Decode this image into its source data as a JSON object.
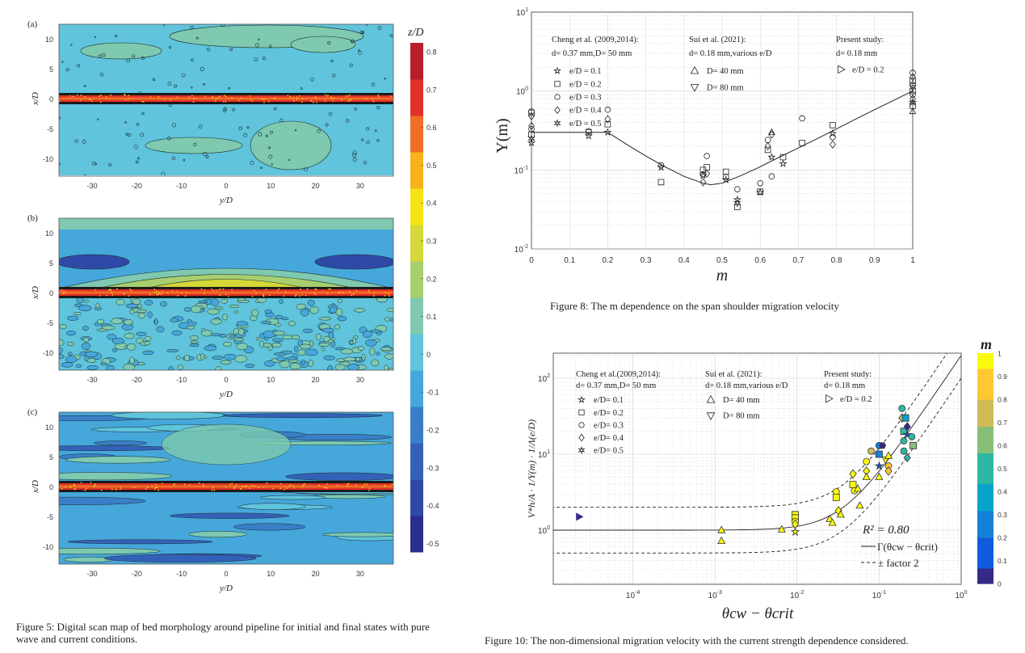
{
  "figure5": {
    "panels": [
      "(a)",
      "(b)",
      "(c)"
    ],
    "xlabel": "y/D",
    "ylabel": "x/D",
    "xticks": [
      "30",
      "20",
      "10",
      "0",
      "-10",
      "-20",
      "-30"
    ],
    "yticks": [
      "10",
      "5",
      "0",
      "-5",
      "-10"
    ],
    "colorbar_label": "z/D",
    "colorbar_ticks": [
      "0.8",
      "0.7",
      "0.6",
      "0.5",
      "0.4",
      "0.3",
      "0.2",
      "0.1",
      "0",
      "-0.1",
      "-0.2",
      "-0.3",
      "-0.4",
      "-0.5"
    ],
    "colormap": [
      "#2a2e8c",
      "#2f49a6",
      "#3461b8",
      "#3a7ec8",
      "#46a7db",
      "#5fc4dc",
      "#7ec9b0",
      "#a8cf6e",
      "#d4d838",
      "#f5e415",
      "#f7b21c",
      "#ee6f25",
      "#e4302a",
      "#b7202a"
    ],
    "caption_line1": "Figure 5: Digital scan map of bed morphology around pipeline for initial and final states with pure",
    "caption_line2": "wave and current conditions."
  },
  "chart_data": [
    {
      "type": "scatter",
      "id": "figure8",
      "xlabel": "m",
      "ylabel": "Υ(m)",
      "xlim": [
        0,
        1
      ],
      "ylim": [
        0.01,
        10
      ],
      "yscale": "log",
      "grid": true,
      "xticks": [
        "0",
        "0.1",
        "0.2",
        "0.3",
        "0.4",
        "0.5",
        "0.6",
        "0.7",
        "0.8",
        "0.9",
        "1"
      ],
      "yticks": [
        {
          "base": "10",
          "exp": "1"
        },
        {
          "base": "10",
          "exp": "0"
        },
        {
          "base": "10",
          "exp": "-1"
        },
        {
          "base": "10",
          "exp": "-2"
        }
      ],
      "legend": {
        "cheng_title": "Cheng et al. (2009,2014):",
        "cheng_sub": "d= 0.37 mm,D= 50 mm",
        "cheng_items": [
          {
            "marker": "star5",
            "label": "e/D = 0.1"
          },
          {
            "marker": "square",
            "label": "e/D = 0.2"
          },
          {
            "marker": "circle",
            "label": "e/D = 0.3"
          },
          {
            "marker": "diamond",
            "label": "e/D = 0.4"
          },
          {
            "marker": "star6",
            "label": "e/D = 0.5"
          }
        ],
        "sui_title": "Sui et al. (2021):",
        "sui_sub": "d= 0.18 mm,various e/D",
        "sui_items": [
          {
            "marker": "tri-up",
            "label": "D= 40 mm"
          },
          {
            "marker": "tri-down",
            "label": "D= 80 mm"
          }
        ],
        "present_title": "Present study:",
        "present_sub": "d= 0.18 mm",
        "present_items": [
          {
            "marker": "tri-right",
            "label": "e/D = 0.2"
          }
        ]
      },
      "fit_curve": {
        "x": [
          0,
          0.2,
          0.25,
          0.3,
          0.35,
          0.4,
          0.45,
          0.47,
          0.5,
          0.55,
          0.6,
          0.65,
          0.7,
          0.75,
          0.8,
          0.85,
          0.9,
          0.95,
          1
        ],
        "y": [
          0.3,
          0.3,
          0.21,
          0.15,
          0.11,
          0.083,
          0.068,
          0.065,
          0.068,
          0.085,
          0.11,
          0.145,
          0.19,
          0.25,
          0.33,
          0.44,
          0.58,
          0.76,
          1.0
        ]
      },
      "points": [
        [
          0,
          0.22,
          "star5"
        ],
        [
          0,
          0.25,
          "star6"
        ],
        [
          0,
          0.28,
          "square"
        ],
        [
          0,
          0.33,
          "circle"
        ],
        [
          0,
          0.36,
          "diamond"
        ],
        [
          0,
          0.48,
          "diamond"
        ],
        [
          0,
          0.53,
          "square"
        ],
        [
          0,
          0.55,
          "circle"
        ],
        [
          0.15,
          0.27,
          "star5"
        ],
        [
          0.15,
          0.3,
          "square"
        ],
        [
          0.15,
          0.31,
          "circle"
        ],
        [
          0.2,
          0.3,
          "star5"
        ],
        [
          0.2,
          0.38,
          "square"
        ],
        [
          0.2,
          0.44,
          "diamond"
        ],
        [
          0.2,
          0.58,
          "circle"
        ],
        [
          0.34,
          0.07,
          "square"
        ],
        [
          0.34,
          0.108,
          "star5"
        ],
        [
          0.34,
          0.115,
          "circle"
        ],
        [
          0.45,
          0.07,
          "diamond"
        ],
        [
          0.45,
          0.085,
          "star5"
        ],
        [
          0.45,
          0.088,
          "circle"
        ],
        [
          0.45,
          0.1,
          "square"
        ],
        [
          0.46,
          0.09,
          "diamond"
        ],
        [
          0.46,
          0.108,
          "square"
        ],
        [
          0.46,
          0.15,
          "circle"
        ],
        [
          0.51,
          0.075,
          "star5"
        ],
        [
          0.51,
          0.082,
          "circle"
        ],
        [
          0.51,
          0.095,
          "square"
        ],
        [
          0.54,
          0.034,
          "square"
        ],
        [
          0.54,
          0.038,
          "star6"
        ],
        [
          0.54,
          0.042,
          "star5"
        ],
        [
          0.54,
          0.057,
          "circle"
        ],
        [
          0.6,
          0.052,
          "star5"
        ],
        [
          0.6,
          0.053,
          "square"
        ],
        [
          0.6,
          0.068,
          "circle"
        ],
        [
          0.62,
          0.18,
          "square"
        ],
        [
          0.62,
          0.2,
          "diamond"
        ],
        [
          0.62,
          0.24,
          "circle"
        ],
        [
          0.63,
          0.083,
          "circle"
        ],
        [
          0.63,
          0.145,
          "star5"
        ],
        [
          0.63,
          0.28,
          "diamond"
        ],
        [
          0.63,
          0.3,
          "tri-up"
        ],
        [
          0.66,
          0.12,
          "star5"
        ],
        [
          0.66,
          0.145,
          "square"
        ],
        [
          0.71,
          0.22,
          "square"
        ],
        [
          0.71,
          0.45,
          "circle"
        ],
        [
          0.79,
          0.21,
          "diamond"
        ],
        [
          0.79,
          0.26,
          "circle"
        ],
        [
          0.79,
          0.29,
          "star5"
        ],
        [
          0.79,
          0.37,
          "square"
        ],
        [
          1,
          0.55,
          "tri-up"
        ],
        [
          1,
          0.65,
          "square"
        ],
        [
          1,
          0.72,
          "star5"
        ],
        [
          1,
          0.8,
          "diamond"
        ],
        [
          1,
          0.9,
          "circle"
        ],
        [
          1,
          1.0,
          "square"
        ],
        [
          1,
          1.1,
          "tri-down"
        ],
        [
          1,
          1.2,
          "circle"
        ],
        [
          1,
          1.35,
          "square"
        ],
        [
          1,
          1.5,
          "diamond"
        ],
        [
          1,
          1.7,
          "circle"
        ]
      ],
      "caption": "Figure 8: The m dependence on the span shoulder migration velocity"
    },
    {
      "type": "scatter",
      "id": "figure10",
      "xlabel": "θcw − θcrit",
      "ylabel": "V*h/A · 1/Υ(m) · 1/Λ(e/D)",
      "xscale": "log",
      "yscale": "log",
      "xlim": [
        1e-05,
        1
      ],
      "ylim": [
        0.2,
        200
      ],
      "grid": true,
      "xticks": [
        {
          "base": "10",
          "exp": "-4"
        },
        {
          "base": "10",
          "exp": "-3"
        },
        {
          "base": "10",
          "exp": "-2"
        },
        {
          "base": "10",
          "exp": "-1"
        },
        {
          "base": "10",
          "exp": "0"
        }
      ],
      "yticks": [
        {
          "base": "10",
          "exp": "2"
        },
        {
          "base": "10",
          "exp": "1"
        },
        {
          "base": "10",
          "exp": "0"
        }
      ],
      "legend": {
        "cheng_title": "Cheng et al.(2009,2014):",
        "cheng_sub": "d= 0.37 mm,D= 50 mm",
        "cheng_items": [
          {
            "marker": "star5",
            "label": "e/D= 0.1"
          },
          {
            "marker": "square",
            "label": "e/D= 0.2"
          },
          {
            "marker": "circle",
            "label": "e/D= 0.3"
          },
          {
            "marker": "diamond",
            "label": "e/D= 0.4"
          },
          {
            "marker": "star6",
            "label": "e/D= 0.5"
          }
        ],
        "sui_title": "Sui et al. (2021):",
        "sui_sub": "d= 0.18 mm,various e/D",
        "sui_items": [
          {
            "marker": "tri-up",
            "label": "D= 40 mm"
          },
          {
            "marker": "tri-down",
            "label": "D= 80 mm"
          }
        ],
        "present_title": "Present study:",
        "present_sub": "d= 0.18 mm",
        "present_items": [
          {
            "marker": "tri-right",
            "label": "e/D = 0.2"
          }
        ]
      },
      "annotation_r2": "R² = 0.80",
      "fit_label": "Γ(θcw − θcrit)",
      "band_label": "± factor 2",
      "colorbar": {
        "label": "m",
        "range": [
          0,
          1
        ],
        "ticks": [
          "1",
          "0.9",
          "0.8",
          "0.7",
          "0.6",
          "0.5",
          "0.4",
          "0.3",
          "0.2",
          "0.1",
          "0"
        ],
        "colormap": [
          "#352a87",
          "#0f5cdd",
          "#1481d6",
          "#06a4ca",
          "#2eb7a4",
          "#87bf77",
          "#d1bb59",
          "#fec832",
          "#f9fb0e"
        ]
      },
      "points": [
        [
          2.2e-05,
          1.5,
          "tri-right",
          0
        ],
        [
          0.0012,
          1.0,
          "tri-up",
          1
        ],
        [
          0.0012,
          0.72,
          "tri-up",
          1
        ],
        [
          0.0065,
          1.02,
          "tri-up",
          1
        ],
        [
          0.0095,
          1.6,
          "square",
          1
        ],
        [
          0.0095,
          1.45,
          "square",
          1
        ],
        [
          0.0095,
          1.3,
          "circle",
          1
        ],
        [
          0.0095,
          1.2,
          "diamond",
          1
        ],
        [
          0.0095,
          0.95,
          "star5",
          1
        ],
        [
          0.025,
          1.4,
          "tri-up",
          1
        ],
        [
          0.027,
          1.25,
          "tri-up",
          1
        ],
        [
          0.03,
          3.2,
          "circle",
          1
        ],
        [
          0.03,
          2.7,
          "square",
          1
        ],
        [
          0.032,
          1.8,
          "diamond",
          1
        ],
        [
          0.034,
          1.6,
          "tri-up",
          1
        ],
        [
          0.048,
          5.5,
          "diamond",
          1
        ],
        [
          0.048,
          4.0,
          "square",
          1
        ],
        [
          0.05,
          3.3,
          "circle",
          0.98
        ],
        [
          0.055,
          3.5,
          "tri-up",
          1
        ],
        [
          0.058,
          2.1,
          "tri-up",
          1
        ],
        [
          0.07,
          8.0,
          "circle",
          0.95
        ],
        [
          0.07,
          6.0,
          "diamond",
          1
        ],
        [
          0.07,
          5.0,
          "tri-up",
          1
        ],
        [
          0.08,
          11,
          "circle",
          0.72
        ],
        [
          0.1,
          5.0,
          "tri-up",
          1
        ],
        [
          0.1,
          13,
          "circle",
          0.2
        ],
        [
          0.1,
          10,
          "square",
          0.25
        ],
        [
          0.1,
          7,
          "star5",
          0.15
        ],
        [
          0.11,
          13,
          "hexagon",
          0
        ],
        [
          0.12,
          8.5,
          "tri-down",
          1
        ],
        [
          0.13,
          9.5,
          "tri-up",
          1
        ],
        [
          0.13,
          7,
          "circle",
          0.82
        ],
        [
          0.13,
          6,
          "diamond",
          0.85
        ],
        [
          0.19,
          40,
          "circle",
          0.45
        ],
        [
          0.19,
          30,
          "diamond",
          0.7
        ],
        [
          0.2,
          20,
          "square",
          0.45
        ],
        [
          0.2,
          15,
          "circle",
          0.5
        ],
        [
          0.2,
          11,
          "circle",
          0.55
        ],
        [
          0.21,
          30,
          "square",
          0.4
        ],
        [
          0.22,
          23,
          "diamond",
          0.05
        ],
        [
          0.22,
          18,
          "star5",
          0.1
        ],
        [
          0.22,
          9,
          "diamond",
          0.5
        ],
        [
          0.25,
          17,
          "circle",
          0.55
        ],
        [
          0.26,
          13,
          "square",
          0.6
        ]
      ],
      "caption": "Figure 10: The non-dimensional migration velocity with the current strength dependence considered."
    }
  ]
}
